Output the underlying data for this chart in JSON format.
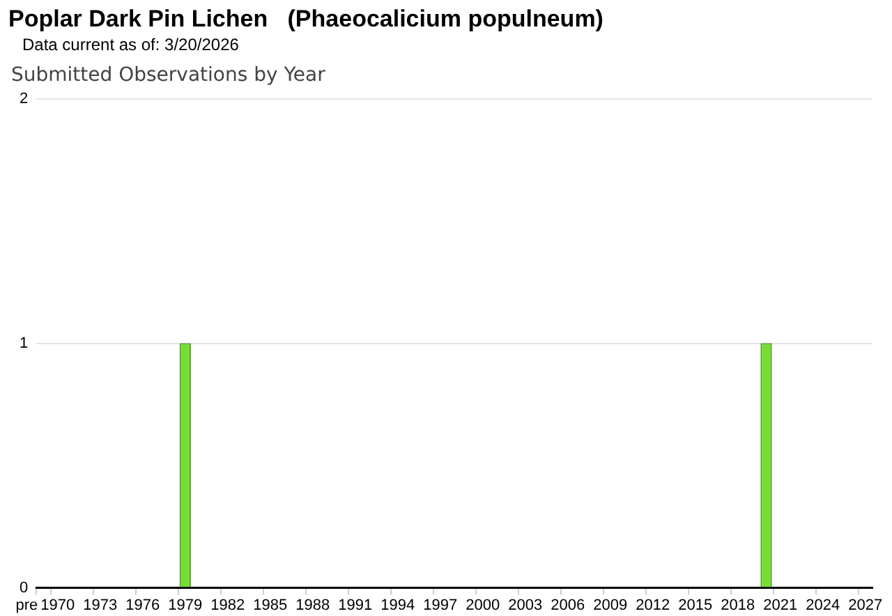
{
  "chart_data": {
    "type": "bar",
    "title": "Poplar Dark Pin Lichen   (Phaeocalicium populneum)",
    "subtitle": "Data current as of: 3/20/2026",
    "annotations": [
      "Submitted Observations by Year"
    ],
    "categories": [
      "pre",
      "1970",
      null,
      null,
      "1973",
      null,
      null,
      "1976",
      null,
      null,
      "1979",
      null,
      null,
      "1982",
      null,
      null,
      "1985",
      null,
      null,
      "1988",
      null,
      null,
      "1991",
      null,
      null,
      "1994",
      null,
      null,
      "1997",
      null,
      null,
      "2000",
      null,
      null,
      "2003",
      null,
      null,
      "2006",
      null,
      null,
      "2009",
      null,
      null,
      "2012",
      null,
      null,
      "2015",
      null,
      null,
      "2018",
      null,
      null,
      "2021",
      null,
      null,
      "2024",
      null,
      null,
      "2027"
    ],
    "values": [
      0,
      0,
      0,
      0,
      0,
      0,
      0,
      0,
      0,
      0,
      1,
      0,
      0,
      0,
      0,
      0,
      0,
      0,
      0,
      0,
      0,
      0,
      0,
      0,
      0,
      0,
      0,
      0,
      0,
      0,
      0,
      0,
      0,
      0,
      0,
      0,
      0,
      0,
      0,
      0,
      0,
      0,
      0,
      0,
      0,
      0,
      0,
      0,
      0,
      0,
      0,
      1,
      0,
      0,
      0,
      0,
      0,
      0,
      0
    ],
    "color": "#77dd33",
    "ylim": [
      0,
      2
    ],
    "yticks": [
      0,
      1,
      2
    ],
    "grid": "y",
    "legend": false
  }
}
